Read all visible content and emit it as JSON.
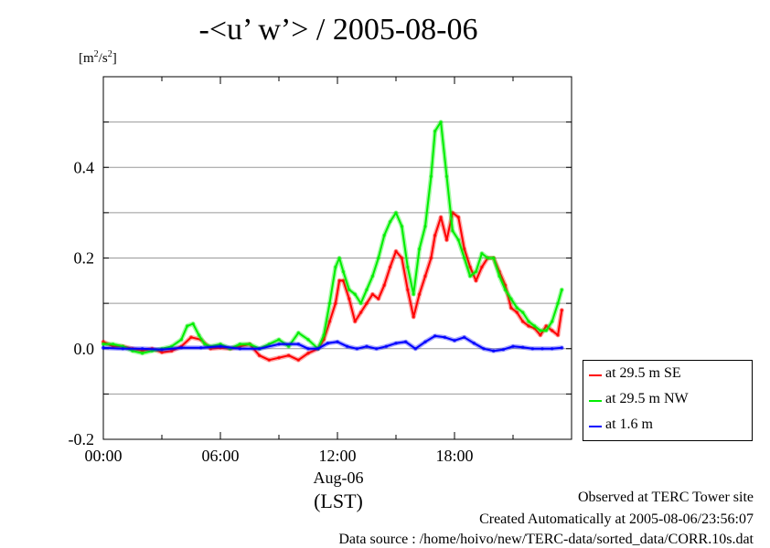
{
  "title": "-<u’ w’> / 2005-08-06",
  "y_unit": {
    "base": "[m",
    "exp1": "2",
    "mid": "/s",
    "exp2": "2",
    "end": "]"
  },
  "x_date_label": "Aug-06",
  "x_zone_label": "(LST)",
  "footer": {
    "line1": "Observed at TERC Tower site",
    "line2": "Created Automatically at 2005-08-06/23:56:07",
    "line3": "Data source : /home/hoivo/new/TERC-data/sorted_data/CORR.10s.dat"
  },
  "chart_data": {
    "type": "line",
    "title": "-<u’ w’> / 2005-08-06",
    "ylabel": "[m2/s2]",
    "xlabel": "Aug-06 (LST)",
    "xlim": [
      0,
      24
    ],
    "ylim": [
      -0.2,
      0.6
    ],
    "x_ticks": [
      0,
      6,
      12,
      18
    ],
    "x_tick_labels": [
      "00:00",
      "06:00",
      "12:00",
      "18:00"
    ],
    "y_ticks": [
      -0.2,
      0.0,
      0.2,
      0.4
    ],
    "y_tick_labels": [
      "-0.2",
      "0.0",
      "0.2",
      "0.4"
    ],
    "grid": true,
    "legend_position": "outside-right",
    "series": [
      {
        "name": "at 29.5 m SE",
        "color": "#ff0000",
        "x": [
          0,
          0.5,
          1,
          1.5,
          2,
          2.5,
          3,
          3.5,
          4,
          4.5,
          5,
          5.5,
          6,
          6.5,
          7,
          7.5,
          8,
          8.5,
          9,
          9.5,
          10,
          10.5,
          11,
          11.3,
          11.6,
          11.9,
          12.1,
          12.3,
          12.6,
          12.9,
          13.2,
          13.5,
          13.8,
          14.1,
          14.4,
          14.7,
          15,
          15.3,
          15.6,
          15.9,
          16.2,
          16.5,
          16.8,
          17,
          17.3,
          17.6,
          17.9,
          18.2,
          18.5,
          18.8,
          19.1,
          19.4,
          19.7,
          20,
          20.3,
          20.6,
          20.9,
          21.2,
          21.5,
          21.8,
          22.1,
          22.4,
          22.7,
          23,
          23.3,
          23.5
        ],
        "y": [
          0.015,
          0.005,
          0.005,
          0.0,
          -0.005,
          0.0,
          -0.008,
          -0.005,
          0.005,
          0.025,
          0.02,
          0.0,
          0.002,
          0.0,
          0.005,
          0.01,
          -0.015,
          -0.025,
          -0.02,
          -0.015,
          -0.025,
          -0.01,
          0.0,
          0.02,
          0.06,
          0.1,
          0.15,
          0.15,
          0.11,
          0.06,
          0.08,
          0.1,
          0.12,
          0.11,
          0.14,
          0.18,
          0.215,
          0.2,
          0.13,
          0.07,
          0.12,
          0.16,
          0.2,
          0.25,
          0.29,
          0.24,
          0.3,
          0.29,
          0.22,
          0.18,
          0.15,
          0.18,
          0.2,
          0.2,
          0.17,
          0.14,
          0.09,
          0.08,
          0.06,
          0.05,
          0.045,
          0.03,
          0.05,
          0.04,
          0.03,
          0.085
        ]
      },
      {
        "name": "at 29.5 m NW",
        "color": "#00ee00",
        "x": [
          0,
          0.5,
          1,
          1.5,
          2,
          2.5,
          3,
          3.5,
          4,
          4.3,
          4.6,
          4.9,
          5.2,
          5.5,
          6,
          6.5,
          7,
          7.5,
          8,
          8.5,
          9,
          9.5,
          10,
          10.5,
          11,
          11.3,
          11.6,
          11.9,
          12.1,
          12.3,
          12.6,
          12.9,
          13.2,
          13.5,
          13.8,
          14.1,
          14.4,
          14.7,
          15,
          15.3,
          15.6,
          15.9,
          16.2,
          16.5,
          16.8,
          17,
          17.3,
          17.6,
          17.9,
          18.2,
          18.5,
          18.8,
          19.1,
          19.4,
          19.7,
          20,
          20.3,
          20.6,
          20.9,
          21.2,
          21.5,
          21.8,
          22.1,
          22.4,
          22.7,
          23,
          23.3,
          23.5
        ],
        "y": [
          0.01,
          0.01,
          0.005,
          -0.005,
          -0.01,
          -0.005,
          0.0,
          0.005,
          0.02,
          0.05,
          0.055,
          0.03,
          0.01,
          0.005,
          0.01,
          0.0,
          0.01,
          0.01,
          0.0,
          0.01,
          0.02,
          0.005,
          0.035,
          0.02,
          0.0,
          0.03,
          0.1,
          0.18,
          0.2,
          0.17,
          0.13,
          0.12,
          0.1,
          0.13,
          0.16,
          0.2,
          0.25,
          0.28,
          0.3,
          0.27,
          0.18,
          0.12,
          0.22,
          0.27,
          0.38,
          0.48,
          0.5,
          0.38,
          0.26,
          0.24,
          0.2,
          0.16,
          0.17,
          0.21,
          0.2,
          0.2,
          0.16,
          0.13,
          0.11,
          0.09,
          0.08,
          0.06,
          0.05,
          0.04,
          0.04,
          0.06,
          0.1,
          0.13
        ]
      },
      {
        "name": "at 1.6 m",
        "color": "#0000ff",
        "x": [
          0,
          1,
          2,
          3,
          4,
          5,
          6,
          7,
          8,
          9,
          10,
          10.5,
          11,
          11.5,
          12,
          12.5,
          13,
          13.5,
          14,
          14.5,
          15,
          15.5,
          16,
          16.5,
          17,
          17.5,
          18,
          18.5,
          19,
          19.5,
          20,
          20.5,
          21,
          21.5,
          22,
          22.5,
          23,
          23.5
        ],
        "y": [
          0.002,
          0.0,
          0.0,
          -0.002,
          0.002,
          0.002,
          0.005,
          0.0,
          0.0,
          0.01,
          0.01,
          0.0,
          0.0,
          0.012,
          0.015,
          0.005,
          0.0,
          0.005,
          0.0,
          0.005,
          0.012,
          0.015,
          0.0,
          0.015,
          0.028,
          0.025,
          0.018,
          0.025,
          0.012,
          0.0,
          -0.005,
          -0.002,
          0.005,
          0.003,
          0.0,
          0.0,
          0.0,
          0.002
        ]
      }
    ]
  }
}
